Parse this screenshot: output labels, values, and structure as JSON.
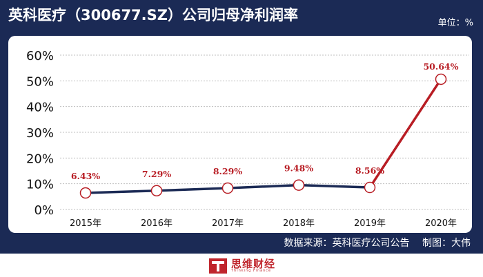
{
  "header": {
    "title": "英科医疗（300677.SZ）公司归母净利润率",
    "unit": "单位：%"
  },
  "footer": {
    "source": "数据来源：英科医疗公司公告",
    "author": "制图：大伟",
    "brand": "思维财经",
    "brand_sub": "Thinking Finance"
  },
  "colors": {
    "background": "#1b2a55",
    "line_2015_2019": "#1b2a55",
    "line_2019_2020": "#b81d24",
    "label": "#b81d24",
    "marker_stroke": "#b81d24",
    "grid": "#bfbfbf"
  },
  "chart_data": {
    "type": "line",
    "title": "英科医疗（300677.SZ）公司归母净利润率",
    "xlabel": "",
    "ylabel": "单位：%",
    "categories": [
      "2015年",
      "2016年",
      "2017年",
      "2018年",
      "2019年",
      "2020年"
    ],
    "values": [
      6.43,
      7.29,
      8.29,
      9.48,
      8.56,
      50.64
    ],
    "value_labels": [
      "6.43%",
      "7.29%",
      "8.29%",
      "9.48%",
      "8.56%",
      "50.64%"
    ],
    "yticks": [
      0,
      10,
      20,
      30,
      40,
      50,
      60
    ],
    "ytick_labels": [
      "0%",
      "10%",
      "20%",
      "30%",
      "40%",
      "50%",
      "60%"
    ],
    "ylim": [
      0,
      60
    ],
    "grid": true
  }
}
